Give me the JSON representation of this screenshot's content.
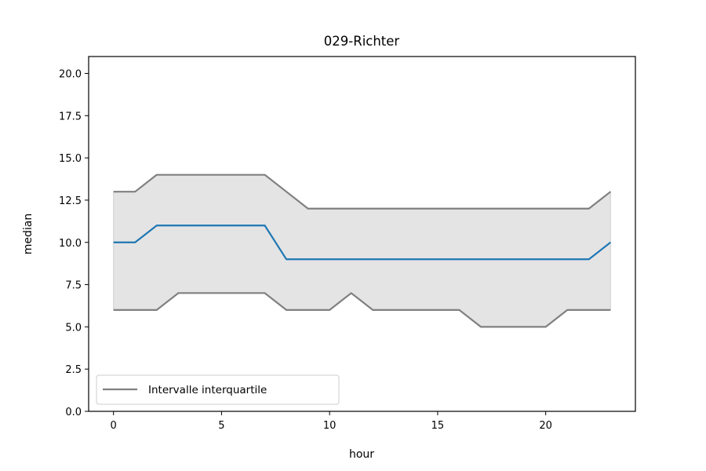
{
  "chart_data": {
    "type": "line",
    "title": "029-Richter",
    "xlabel": "hour",
    "ylabel": "median",
    "xlim": [
      -1.15,
      24.15
    ],
    "ylim": [
      0,
      21
    ],
    "xticks": [
      0,
      5,
      10,
      15,
      20
    ],
    "yticks": [
      0.0,
      2.5,
      5.0,
      7.5,
      10.0,
      12.5,
      15.0,
      17.5,
      20.0
    ],
    "xtick_labels": [
      "0",
      "5",
      "10",
      "15",
      "20"
    ],
    "ytick_labels": [
      "0.0",
      "2.5",
      "5.0",
      "7.5",
      "10.0",
      "12.5",
      "15.0",
      "17.5",
      "20.0"
    ],
    "grid": false,
    "legend_position": "lower-left",
    "legend": [
      {
        "label": "Intervalle interquartile",
        "color": "#808080"
      }
    ],
    "x": [
      0,
      1,
      2,
      3,
      4,
      5,
      6,
      7,
      8,
      9,
      10,
      11,
      12,
      13,
      14,
      15,
      16,
      17,
      18,
      19,
      20,
      21,
      22,
      23
    ],
    "series": [
      {
        "role": "median",
        "color": "#1f77b4",
        "values": [
          10,
          10,
          11,
          11,
          11,
          11,
          11,
          11,
          9,
          9,
          9,
          9,
          9,
          9,
          9,
          9,
          9,
          9,
          9,
          9,
          9,
          9,
          9,
          10
        ]
      },
      {
        "role": "q3",
        "color": "#808080",
        "values": [
          13,
          13,
          14,
          14,
          14,
          14,
          14,
          14,
          13,
          12,
          12,
          12,
          12,
          12,
          12,
          12,
          12,
          12,
          12,
          12,
          12,
          12,
          12,
          13
        ]
      },
      {
        "role": "q1",
        "color": "#808080",
        "values": [
          6,
          6,
          6,
          7,
          7,
          7,
          7,
          7,
          6,
          6,
          6,
          7,
          6,
          6,
          6,
          6,
          6,
          5,
          5,
          5,
          5,
          6,
          6,
          6
        ]
      }
    ],
    "band_color": "#e4e4e4"
  }
}
